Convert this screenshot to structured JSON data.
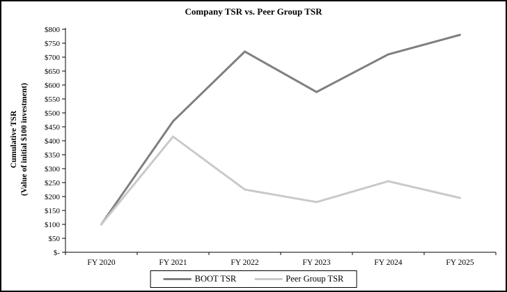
{
  "window": {
    "background": "#ffffff",
    "border_color": "#000000"
  },
  "chart_data": {
    "type": "line",
    "title": "Company TSR vs. Peer Group TSR",
    "ylabel_line1": "Cumulative TSR",
    "ylabel_line2": "(Value of initial $100 investment)",
    "xlabel": "",
    "categories": [
      "FY 2020",
      "FY 2021",
      "FY 2022",
      "FY 2023",
      "FY 2024",
      "FY 2025"
    ],
    "series": [
      {
        "name": "BOOT TSR",
        "color": "#7f7f7f",
        "values": [
          100,
          470,
          720,
          575,
          710,
          780
        ]
      },
      {
        "name": "Peer Group TSR",
        "color": "#c9c9c9",
        "values": [
          100,
          415,
          225,
          180,
          255,
          195
        ]
      }
    ],
    "y_ticks": [
      {
        "value": 0,
        "label": "$-"
      },
      {
        "value": 50,
        "label": "$50"
      },
      {
        "value": 100,
        "label": "$100"
      },
      {
        "value": 150,
        "label": "$150"
      },
      {
        "value": 200,
        "label": "$200"
      },
      {
        "value": 250,
        "label": "$250"
      },
      {
        "value": 300,
        "label": "$300"
      },
      {
        "value": 350,
        "label": "$350"
      },
      {
        "value": 400,
        "label": "$400"
      },
      {
        "value": 450,
        "label": "$450"
      },
      {
        "value": 500,
        "label": "$500"
      },
      {
        "value": 550,
        "label": "$550"
      },
      {
        "value": 600,
        "label": "$600"
      },
      {
        "value": 650,
        "label": "$650"
      },
      {
        "value": 700,
        "label": "$700"
      },
      {
        "value": 750,
        "label": "$750"
      },
      {
        "value": 800,
        "label": "$800"
      }
    ],
    "ylim": [
      0,
      800
    ],
    "grid": false,
    "legend_position": "bottom",
    "axis_color": "#000000"
  }
}
